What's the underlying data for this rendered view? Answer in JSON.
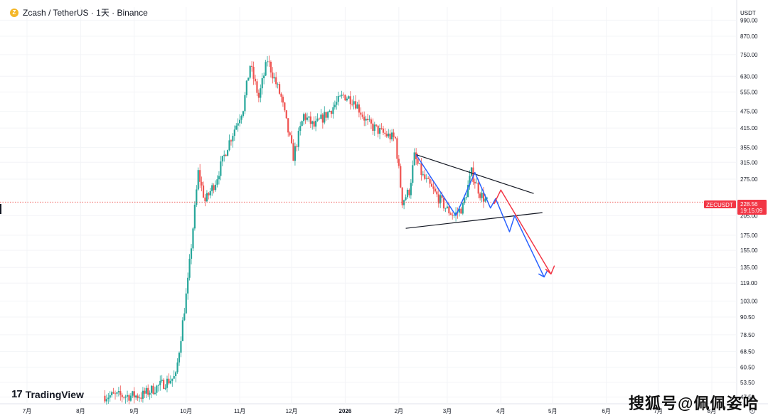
{
  "header": {
    "symbol_title": "Zcash / TetherUS · 1天 · Binance",
    "coin_icon": "zcash-coin-icon"
  },
  "axis": {
    "currency": "USDT"
  },
  "logo": {
    "text": "TradingView",
    "icon": "tradingview-logo-icon"
  },
  "watermark": {
    "text": "搜狐号@佩佩姿哈"
  },
  "price_tag": {
    "symbol": "ZECUSDT",
    "price": "228.56",
    "countdown": "19:15:09"
  },
  "chart_data": {
    "type": "candlestick",
    "title": "Zcash / TetherUS · 1天 · Binance",
    "y_scale": "log",
    "ylim": [
      45,
      1100
    ],
    "y_ticks": [
      "990.00",
      "870.00",
      "750.00",
      "630.00",
      "555.00",
      "475.00",
      "415.00",
      "355.00",
      "315.00",
      "275.00",
      "205.00",
      "175.00",
      "155.00",
      "135.00",
      "119.00",
      "103.00",
      "90.50",
      "78.50",
      "68.50",
      "60.50",
      "53.50",
      "47.50"
    ],
    "x_ticks": [
      "7月",
      "8月",
      "9月",
      "10月",
      "11月",
      "12月",
      "2026",
      "2月",
      "3月",
      "4月",
      "5月",
      "6月",
      "7月",
      "8月"
    ],
    "x_tick_dates": [
      "2025-07-01",
      "2025-08-01",
      "2025-09-01",
      "2025-10-01",
      "2025-11-01",
      "2025-12-01",
      "2026-01-01",
      "2026-02-01",
      "2026-03-01",
      "2026-04-01",
      "2026-05-01",
      "2026-06-01",
      "2026-07-01",
      "2026-08-01"
    ],
    "last_price": 228.56,
    "colors": {
      "up": "#26a69a",
      "down": "#ef5350",
      "triangle": "#131722",
      "blue_path": "#2962ff",
      "red_path": "#f23645",
      "price_line": "#ef5350"
    },
    "trend_anchors": [
      [
        "2025-08-15",
        48
      ],
      [
        "2025-09-05",
        48
      ],
      [
        "2025-09-25",
        56
      ],
      [
        "2025-10-02",
        120
      ],
      [
        "2025-10-08",
        290
      ],
      [
        "2025-10-12",
        230
      ],
      [
        "2025-10-18",
        270
      ],
      [
        "2025-10-25",
        360
      ],
      [
        "2025-11-03",
        490
      ],
      [
        "2025-11-07",
        690
      ],
      [
        "2025-11-12",
        530
      ],
      [
        "2025-11-17",
        720
      ],
      [
        "2025-11-25",
        530
      ],
      [
        "2025-12-02",
        330
      ],
      [
        "2025-12-08",
        460
      ],
      [
        "2025-12-14",
        420
      ],
      [
        "2025-12-22",
        470
      ],
      [
        "2025-12-31",
        540
      ],
      [
        "2026-01-06",
        520
      ],
      [
        "2026-01-14",
        430
      ],
      [
        "2026-01-22",
        400
      ],
      [
        "2026-01-30",
        380
      ],
      [
        "2026-02-03",
        230
      ],
      [
        "2026-02-07",
        250
      ],
      [
        "2026-02-10",
        330
      ],
      [
        "2026-02-15",
        280
      ],
      [
        "2026-02-22",
        245
      ],
      [
        "2026-03-01",
        215
      ],
      [
        "2026-03-05",
        205
      ],
      [
        "2026-03-10",
        220
      ],
      [
        "2026-03-15",
        290
      ],
      [
        "2026-03-20",
        245
      ],
      [
        "2026-03-24",
        228.56
      ]
    ],
    "annotations": {
      "triangle_upper": [
        [
          "2026-02-11",
          335
        ],
        [
          "2026-04-20",
          245
        ]
      ],
      "triangle_lower": [
        [
          "2026-02-05",
          185
        ],
        [
          "2026-04-25",
          210
        ]
      ],
      "blue_path": [
        [
          "2026-02-11",
          335
        ],
        [
          "2026-03-06",
          205
        ],
        [
          "2026-03-17",
          290
        ],
        [
          "2026-03-26",
          218
        ],
        [
          "2026-03-29",
          235
        ],
        [
          "2026-04-06",
          180
        ],
        [
          "2026-04-09",
          205
        ],
        [
          "2026-04-26",
          125
        ],
        [
          "2026-04-23",
          128
        ],
        [
          "2026-04-26",
          125
        ],
        [
          "2026-04-28",
          132
        ]
      ],
      "red_path": [
        [
          "2026-03-28",
          225
        ],
        [
          "2026-04-01",
          252
        ],
        [
          "2026-04-30",
          128
        ],
        [
          "2026-04-27",
          133
        ],
        [
          "2026-04-30",
          128
        ],
        [
          "2026-05-02",
          137
        ]
      ]
    }
  }
}
